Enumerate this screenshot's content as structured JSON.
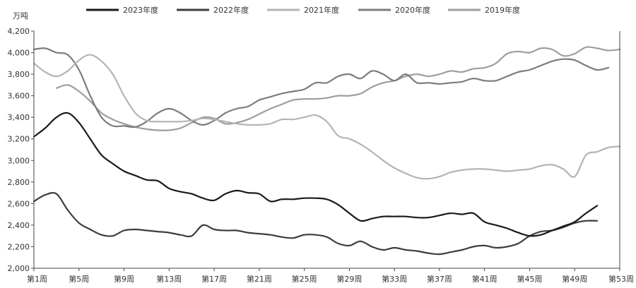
{
  "chart_data": {
    "type": "line",
    "ylabel": "万吨",
    "ylim": [
      2000,
      4200
    ],
    "y_ticks": [
      "2,000",
      "2,200",
      "2,400",
      "2,600",
      "2,800",
      "3,000",
      "3,200",
      "3,400",
      "3,600",
      "3,800",
      "4,000",
      "4,200"
    ],
    "x_tick_labels": [
      "第1周",
      "第5周",
      "第9周",
      "第13周",
      "第17周",
      "第21周",
      "第25周",
      "第29周",
      "第33周",
      "第37周",
      "第41周",
      "第45周",
      "第49周",
      "第53周"
    ],
    "x_tick_weeks": [
      1,
      5,
      9,
      13,
      17,
      21,
      25,
      29,
      33,
      37,
      41,
      45,
      49,
      53
    ],
    "xlim": [
      1,
      53
    ],
    "grid": false,
    "legend_position": "top",
    "series": [
      {
        "name": "2023年度",
        "color": "#1a1a1a",
        "points": [
          [
            1,
            3220
          ],
          [
            2,
            3300
          ],
          [
            3,
            3400
          ],
          [
            4,
            3440
          ],
          [
            5,
            3350
          ],
          [
            6,
            3200
          ],
          [
            7,
            3050
          ],
          [
            8,
            2970
          ],
          [
            9,
            2900
          ],
          [
            10,
            2860
          ],
          [
            11,
            2820
          ],
          [
            12,
            2810
          ],
          [
            13,
            2740
          ],
          [
            14,
            2710
          ],
          [
            15,
            2690
          ],
          [
            16,
            2650
          ],
          [
            17,
            2630
          ],
          [
            18,
            2690
          ],
          [
            19,
            2720
          ],
          [
            20,
            2700
          ],
          [
            21,
            2690
          ],
          [
            22,
            2620
          ],
          [
            23,
            2640
          ],
          [
            24,
            2640
          ],
          [
            25,
            2650
          ],
          [
            26,
            2650
          ],
          [
            27,
            2640
          ],
          [
            28,
            2590
          ],
          [
            29,
            2510
          ],
          [
            30,
            2440
          ],
          [
            31,
            2460
          ],
          [
            32,
            2480
          ],
          [
            33,
            2480
          ],
          [
            34,
            2480
          ],
          [
            35,
            2470
          ],
          [
            36,
            2470
          ],
          [
            37,
            2490
          ],
          [
            38,
            2510
          ],
          [
            39,
            2500
          ],
          [
            40,
            2510
          ],
          [
            41,
            2430
          ],
          [
            42,
            2400
          ],
          [
            43,
            2370
          ],
          [
            44,
            2330
          ],
          [
            45,
            2300
          ],
          [
            46,
            2310
          ],
          [
            47,
            2350
          ],
          [
            48,
            2390
          ],
          [
            49,
            2430
          ],
          [
            50,
            2510
          ],
          [
            51,
            2580
          ]
        ]
      },
      {
        "name": "2022年度",
        "color": "#3d3d3d",
        "points": [
          [
            1,
            2620
          ],
          [
            2,
            2680
          ],
          [
            3,
            2690
          ],
          [
            4,
            2540
          ],
          [
            5,
            2420
          ],
          [
            6,
            2360
          ],
          [
            7,
            2310
          ],
          [
            8,
            2300
          ],
          [
            9,
            2350
          ],
          [
            10,
            2360
          ],
          [
            11,
            2350
          ],
          [
            12,
            2340
          ],
          [
            13,
            2330
          ],
          [
            14,
            2310
          ],
          [
            15,
            2300
          ],
          [
            16,
            2400
          ],
          [
            17,
            2360
          ],
          [
            18,
            2350
          ],
          [
            19,
            2350
          ],
          [
            20,
            2330
          ],
          [
            21,
            2320
          ],
          [
            22,
            2310
          ],
          [
            23,
            2290
          ],
          [
            24,
            2280
          ],
          [
            25,
            2310
          ],
          [
            26,
            2310
          ],
          [
            27,
            2290
          ],
          [
            28,
            2230
          ],
          [
            29,
            2210
          ],
          [
            30,
            2250
          ],
          [
            31,
            2200
          ],
          [
            32,
            2170
          ],
          [
            33,
            2190
          ],
          [
            34,
            2170
          ],
          [
            35,
            2160
          ],
          [
            36,
            2140
          ],
          [
            37,
            2130
          ],
          [
            38,
            2150
          ],
          [
            39,
            2170
          ],
          [
            40,
            2200
          ],
          [
            41,
            2210
          ],
          [
            42,
            2190
          ],
          [
            43,
            2200
          ],
          [
            44,
            2230
          ],
          [
            45,
            2300
          ],
          [
            46,
            2340
          ],
          [
            47,
            2350
          ],
          [
            48,
            2380
          ],
          [
            49,
            2420
          ],
          [
            50,
            2440
          ],
          [
            51,
            2440
          ]
        ]
      },
      {
        "name": "2021年度",
        "color": "#b4b4b4",
        "points": [
          [
            1,
            3900
          ],
          [
            2,
            3820
          ],
          [
            3,
            3780
          ],
          [
            4,
            3830
          ],
          [
            5,
            3930
          ],
          [
            6,
            3980
          ],
          [
            7,
            3920
          ],
          [
            8,
            3800
          ],
          [
            9,
            3600
          ],
          [
            10,
            3440
          ],
          [
            11,
            3370
          ],
          [
            12,
            3360
          ],
          [
            13,
            3360
          ],
          [
            14,
            3360
          ],
          [
            15,
            3370
          ],
          [
            16,
            3390
          ],
          [
            17,
            3380
          ],
          [
            18,
            3360
          ],
          [
            19,
            3340
          ],
          [
            20,
            3330
          ],
          [
            21,
            3330
          ],
          [
            22,
            3340
          ],
          [
            23,
            3380
          ],
          [
            24,
            3380
          ],
          [
            25,
            3400
          ],
          [
            26,
            3420
          ],
          [
            27,
            3360
          ],
          [
            28,
            3230
          ],
          [
            29,
            3200
          ],
          [
            30,
            3150
          ],
          [
            31,
            3080
          ],
          [
            32,
            3000
          ],
          [
            33,
            2930
          ],
          [
            34,
            2880
          ],
          [
            35,
            2840
          ],
          [
            36,
            2830
          ],
          [
            37,
            2850
          ],
          [
            38,
            2890
          ],
          [
            39,
            2910
          ],
          [
            40,
            2920
          ],
          [
            41,
            2920
          ],
          [
            42,
            2910
          ],
          [
            43,
            2900
          ],
          [
            44,
            2910
          ],
          [
            45,
            2920
          ],
          [
            46,
            2950
          ],
          [
            47,
            2960
          ],
          [
            48,
            2920
          ],
          [
            49,
            2850
          ],
          [
            50,
            3050
          ],
          [
            51,
            3080
          ],
          [
            52,
            3120
          ],
          [
            53,
            3130
          ]
        ]
      },
      {
        "name": "2020年度",
        "color": "#7c7c7c",
        "points": [
          [
            1,
            4030
          ],
          [
            2,
            4040
          ],
          [
            3,
            4000
          ],
          [
            4,
            3980
          ],
          [
            5,
            3840
          ],
          [
            6,
            3600
          ],
          [
            7,
            3400
          ],
          [
            8,
            3320
          ],
          [
            9,
            3320
          ],
          [
            10,
            3310
          ],
          [
            11,
            3360
          ],
          [
            12,
            3440
          ],
          [
            13,
            3480
          ],
          [
            14,
            3440
          ],
          [
            15,
            3370
          ],
          [
            16,
            3330
          ],
          [
            17,
            3370
          ],
          [
            18,
            3440
          ],
          [
            19,
            3480
          ],
          [
            20,
            3500
          ],
          [
            21,
            3560
          ],
          [
            22,
            3590
          ],
          [
            23,
            3620
          ],
          [
            24,
            3640
          ],
          [
            25,
            3660
          ],
          [
            26,
            3720
          ],
          [
            27,
            3720
          ],
          [
            28,
            3780
          ],
          [
            29,
            3800
          ],
          [
            30,
            3760
          ],
          [
            31,
            3830
          ],
          [
            32,
            3800
          ],
          [
            33,
            3740
          ],
          [
            34,
            3800
          ],
          [
            35,
            3720
          ],
          [
            36,
            3720
          ],
          [
            37,
            3710
          ],
          [
            38,
            3720
          ],
          [
            39,
            3730
          ],
          [
            40,
            3760
          ],
          [
            41,
            3740
          ],
          [
            42,
            3740
          ],
          [
            43,
            3780
          ],
          [
            44,
            3820
          ],
          [
            45,
            3840
          ],
          [
            46,
            3880
          ],
          [
            47,
            3920
          ],
          [
            48,
            3940
          ],
          [
            49,
            3930
          ],
          [
            50,
            3880
          ],
          [
            51,
            3840
          ],
          [
            52,
            3860
          ]
        ]
      },
      {
        "name": "2019年度",
        "color": "#9e9e9e",
        "points": [
          [
            3,
            3670
          ],
          [
            4,
            3700
          ],
          [
            5,
            3640
          ],
          [
            6,
            3550
          ],
          [
            7,
            3440
          ],
          [
            8,
            3380
          ],
          [
            9,
            3340
          ],
          [
            10,
            3310
          ],
          [
            11,
            3290
          ],
          [
            12,
            3280
          ],
          [
            13,
            3280
          ],
          [
            14,
            3300
          ],
          [
            15,
            3350
          ],
          [
            16,
            3400
          ],
          [
            17,
            3390
          ],
          [
            18,
            3340
          ],
          [
            19,
            3350
          ],
          [
            20,
            3380
          ],
          [
            21,
            3430
          ],
          [
            22,
            3480
          ],
          [
            23,
            3520
          ],
          [
            24,
            3560
          ],
          [
            25,
            3570
          ],
          [
            26,
            3570
          ],
          [
            27,
            3580
          ],
          [
            28,
            3600
          ],
          [
            29,
            3600
          ],
          [
            30,
            3620
          ],
          [
            31,
            3680
          ],
          [
            32,
            3720
          ],
          [
            33,
            3740
          ],
          [
            34,
            3780
          ],
          [
            35,
            3800
          ],
          [
            36,
            3780
          ],
          [
            37,
            3800
          ],
          [
            38,
            3830
          ],
          [
            39,
            3820
          ],
          [
            40,
            3850
          ],
          [
            41,
            3860
          ],
          [
            42,
            3900
          ],
          [
            43,
            3990
          ],
          [
            44,
            4010
          ],
          [
            45,
            4000
          ],
          [
            46,
            4040
          ],
          [
            47,
            4030
          ],
          [
            48,
            3970
          ],
          [
            49,
            3990
          ],
          [
            50,
            4050
          ],
          [
            51,
            4040
          ],
          [
            52,
            4020
          ],
          [
            53,
            4030
          ]
        ]
      }
    ]
  }
}
